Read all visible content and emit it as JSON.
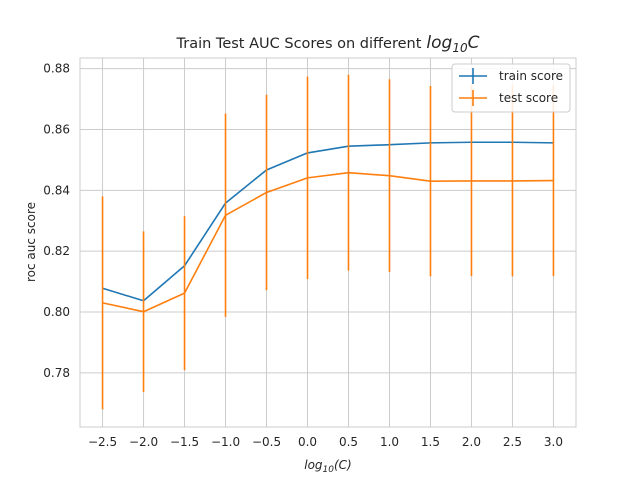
{
  "chart_data": {
    "type": "line",
    "title": "Train Test AUC Scores on different",
    "title_math_base": "log",
    "title_math_sub": "10",
    "title_math_var": "C",
    "xlabel_base": "log",
    "xlabel_sub": "10",
    "xlabel_rest": "(C)",
    "ylabel": "roc auc score",
    "x": [
      -2.5,
      -2.0,
      -1.5,
      -1.0,
      -0.5,
      0.0,
      0.5,
      1.0,
      1.5,
      2.0,
      2.5,
      3.0
    ],
    "xticks": [
      "−2.5",
      "−2.0",
      "−1.5",
      "−1.0",
      "−0.5",
      "0.0",
      "0.5",
      "1.0",
      "1.5",
      "2.0",
      "2.5",
      "3.0"
    ],
    "xtick_values": [
      -2.5,
      -2.0,
      -1.5,
      -1.0,
      -0.5,
      0.0,
      0.5,
      1.0,
      1.5,
      2.0,
      2.5,
      3.0
    ],
    "yticks": [
      "0.78",
      "0.80",
      "0.82",
      "0.84",
      "0.86",
      "0.88"
    ],
    "ytick_values": [
      0.78,
      0.8,
      0.82,
      0.84,
      0.86,
      0.88
    ],
    "xlim": [
      -2.775,
      3.275
    ],
    "ylim": [
      0.7622,
      0.8835
    ],
    "grid": true,
    "legend_position": "upper-right",
    "series": [
      {
        "name": "train score",
        "color": "#1f77b4",
        "values": [
          0.8078,
          0.8037,
          0.8152,
          0.8358,
          0.8467,
          0.8523,
          0.8545,
          0.855,
          0.8556,
          0.8558,
          0.8558,
          0.8556
        ],
        "errors": [
          0.0,
          0.0,
          0.0,
          0.0,
          0.0,
          0.0,
          0.0,
          0.0,
          0.0,
          0.0,
          0.0,
          0.0
        ]
      },
      {
        "name": "test score",
        "color": "#ff7f0e",
        "values": [
          0.803,
          0.8001,
          0.8062,
          0.8318,
          0.8393,
          0.8441,
          0.8458,
          0.8448,
          0.843,
          0.8431,
          0.8431,
          0.8432
        ],
        "errors": [
          0.035,
          0.0264,
          0.0253,
          0.0334,
          0.0321,
          0.0333,
          0.0322,
          0.0317,
          0.0313,
          0.0313,
          0.0314,
          0.0314
        ]
      }
    ]
  }
}
